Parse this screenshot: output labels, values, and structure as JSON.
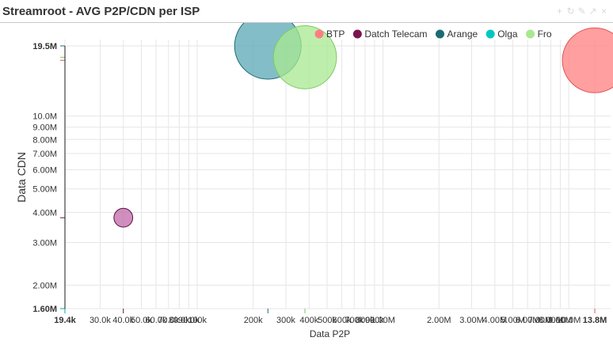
{
  "panel": {
    "title": "Streamroot - AVG P2P/CDN per ISP",
    "tools": [
      {
        "icon": "plus-icon",
        "glyph": "+"
      },
      {
        "icon": "refresh-icon",
        "glyph": "↻"
      },
      {
        "icon": "edit-icon",
        "glyph": "✎"
      },
      {
        "icon": "share-icon",
        "glyph": "↗"
      },
      {
        "icon": "close-icon",
        "glyph": "×"
      }
    ]
  },
  "chart_data": {
    "type": "scatter",
    "variant": "bubble",
    "title": "",
    "xlabel": "Data P2P",
    "ylabel": "Data CDN",
    "xscale": "log",
    "yscale": "log",
    "xlim": [
      19400,
      13800000
    ],
    "ylim": [
      1600000,
      19500000
    ],
    "grid": true,
    "legend_position": "top-right",
    "x_ticks": [
      {
        "value": 19400,
        "label": "19.4k",
        "bold": true
      },
      {
        "value": 30000,
        "label": "30.0k"
      },
      {
        "value": 40000,
        "label": "40.0k"
      },
      {
        "value": 50000,
        "label": "50.0k"
      },
      {
        "value": 60000,
        "label": "60.0k"
      },
      {
        "value": 70000,
        "label": "70.0k"
      },
      {
        "value": 80000,
        "label": "80.0k"
      },
      {
        "value": 90000,
        "label": "90.0k"
      },
      {
        "value": 100000,
        "label": "100k"
      },
      {
        "value": 200000,
        "label": "200k"
      },
      {
        "value": 300000,
        "label": "300k"
      },
      {
        "value": 400000,
        "label": "400k"
      },
      {
        "value": 500000,
        "label": "500k"
      },
      {
        "value": 600000,
        "label": "600k"
      },
      {
        "value": 700000,
        "label": "700k"
      },
      {
        "value": 800000,
        "label": "800k"
      },
      {
        "value": 900000,
        "label": "900k"
      },
      {
        "value": 1000000,
        "label": "1.00M"
      },
      {
        "value": 2000000,
        "label": "2.00M"
      },
      {
        "value": 3000000,
        "label": "3.00M"
      },
      {
        "value": 4000000,
        "label": "4.00M"
      },
      {
        "value": 5000000,
        "label": "5.00M"
      },
      {
        "value": 6000000,
        "label": "6.00M"
      },
      {
        "value": 7000000,
        "label": "7.00M"
      },
      {
        "value": 8000000,
        "label": "8.00M"
      },
      {
        "value": 9000000,
        "label": "9.00M"
      },
      {
        "value": 10000000,
        "label": "10.0M"
      },
      {
        "value": 13800000,
        "label": "13.8M",
        "bold": true
      }
    ],
    "y_ticks": [
      {
        "value": 1600000,
        "label": "1.60M",
        "bold": true
      },
      {
        "value": 2000000,
        "label": "2.00M"
      },
      {
        "value": 3000000,
        "label": "3.00M"
      },
      {
        "value": 4000000,
        "label": "4.00M"
      },
      {
        "value": 5000000,
        "label": "5.00M"
      },
      {
        "value": 6000000,
        "label": "6.00M"
      },
      {
        "value": 7000000,
        "label": "7.00M"
      },
      {
        "value": 8000000,
        "label": "8.00M"
      },
      {
        "value": 9000000,
        "label": "9.00M"
      },
      {
        "value": 10000000,
        "label": "10.0M"
      },
      {
        "value": 19500000,
        "label": "19.5M",
        "bold": true
      }
    ],
    "series": [
      {
        "name": "BTP",
        "color": "#ff7f7f",
        "stroke": "#e05555",
        "points": [
          {
            "x": 13800000,
            "y": 17000000,
            "size": 95
          }
        ]
      },
      {
        "name": "Datch Telecam",
        "color": "#c06aa8",
        "stroke": "#5a1040",
        "points": [
          {
            "x": 40000,
            "y": 3800000,
            "size": 8
          }
        ]
      },
      {
        "name": "Arange",
        "color": "#5aa8b5",
        "stroke": "#1b6b75",
        "points": [
          {
            "x": 240000,
            "y": 19500000,
            "size": 100
          }
        ]
      },
      {
        "name": "Olga",
        "color": "#00c8c0",
        "stroke": "#00a8a0",
        "points": [
          {
            "x": 19400,
            "y": 1600000,
            "size": 0
          }
        ]
      },
      {
        "name": "Fro",
        "color": "#a8e890",
        "stroke": "#7cc860",
        "points": [
          {
            "x": 380000,
            "y": 17500000,
            "size": 90
          }
        ]
      }
    ]
  }
}
